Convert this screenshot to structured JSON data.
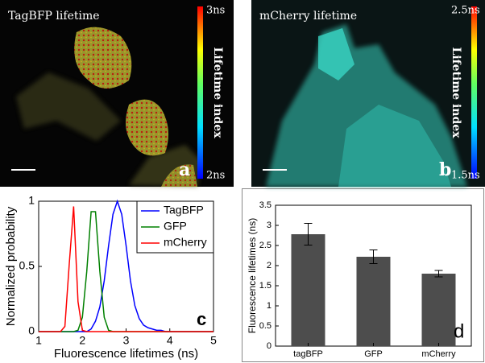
{
  "images": [
    {
      "title": "TagBFP lifetime",
      "colorbar_label": "Lifetime index",
      "colorbar_max": "3ns",
      "colorbar_min": "2ns",
      "panel_label": "a"
    },
    {
      "title": "mCherry lifetime",
      "colorbar_label": "Lifetime index",
      "colorbar_max": "2.5ns",
      "colorbar_min": "1.5ns",
      "panel_label": "b"
    }
  ],
  "chart_data": [
    {
      "type": "line",
      "panel_label": "c",
      "xlabel": "Fluorescence lifetimes (ns)",
      "ylabel": "Normalized probability",
      "x": [
        1.0,
        1.1,
        1.2,
        1.3,
        1.4,
        1.5,
        1.6,
        1.7,
        1.8,
        1.9,
        2.0,
        2.1,
        2.2,
        2.3,
        2.4,
        2.5,
        2.6,
        2.7,
        2.8,
        2.9,
        3.0,
        3.1,
        3.2,
        3.3,
        3.4,
        3.5,
        3.6,
        3.7,
        3.8,
        3.9,
        4.0,
        4.1,
        4.2,
        4.3,
        4.4,
        4.5,
        4.6,
        4.7,
        4.8,
        4.9,
        5.0
      ],
      "series": [
        {
          "name": "TagBFP",
          "color": "#0000ff",
          "values": [
            0,
            0,
            0,
            0,
            0,
            0,
            0,
            0,
            0,
            0,
            0,
            0,
            0.02,
            0.08,
            0.19,
            0.39,
            0.66,
            0.9,
            1,
            0.9,
            0.66,
            0.39,
            0.2,
            0.1,
            0.05,
            0.03,
            0.02,
            0.01,
            0.01,
            0,
            0,
            0,
            0,
            0,
            0,
            0,
            0,
            0,
            0,
            0,
            0
          ]
        },
        {
          "name": "GFP",
          "color": "#008000",
          "values": [
            0,
            0,
            0,
            0,
            0,
            0,
            0,
            0,
            0,
            0.01,
            0.11,
            0.46,
            0.92,
            0.92,
            0.46,
            0.11,
            0.01,
            0,
            0,
            0,
            0,
            0,
            0,
            0,
            0,
            0,
            0,
            0,
            0,
            0,
            0,
            0,
            0,
            0,
            0,
            0,
            0,
            0,
            0,
            0,
            0
          ]
        },
        {
          "name": "mCherry",
          "color": "#ff0000",
          "values": [
            0,
            0,
            0,
            0,
            0,
            0,
            0.04,
            0.52,
            0.96,
            0.23,
            0.01,
            0,
            0,
            0,
            0,
            0,
            0,
            0,
            0,
            0,
            0,
            0,
            0,
            0,
            0,
            0,
            0,
            0,
            0,
            0,
            0,
            0,
            0,
            0,
            0,
            0,
            0,
            0,
            0,
            0,
            0
          ]
        }
      ],
      "xlim": [
        1,
        5
      ],
      "ylim": [
        0,
        1
      ],
      "xticks": [
        1,
        2,
        3,
        4,
        5
      ],
      "yticks": [
        0,
        0.5,
        1
      ],
      "legend": "upper right"
    },
    {
      "type": "bar",
      "panel_label": "d",
      "ylabel": "Fluorescence lifetimes (ns)",
      "categories": [
        "tagBFP",
        "GFP",
        "mCherry"
      ],
      "values": [
        2.78,
        2.22,
        1.8
      ],
      "errors": [
        0.27,
        0.17,
        0.08
      ],
      "color": "#4d4d4d",
      "ylim": [
        0,
        3.5
      ],
      "yticks": [
        0,
        0.5,
        1,
        1.5,
        2,
        2.5,
        3,
        3.5
      ]
    }
  ]
}
